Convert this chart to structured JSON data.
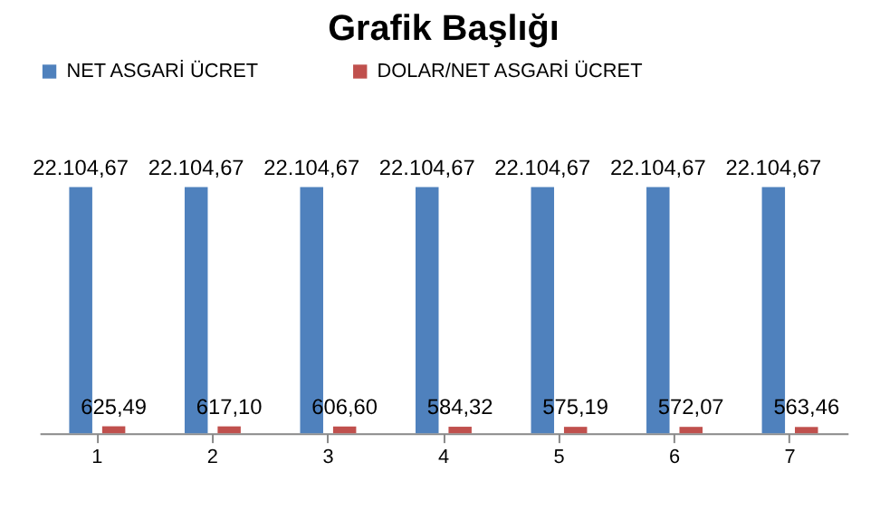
{
  "chart_data": {
    "type": "bar",
    "title": "Grafik Başlığı",
    "categories": [
      "1",
      "2",
      "3",
      "4",
      "5",
      "6",
      "7"
    ],
    "series": [
      {
        "name": "NET ASGARİ ÜCRET",
        "color": "#4f81bd",
        "values": [
          22104.67,
          22104.67,
          22104.67,
          22104.67,
          22104.67,
          22104.67,
          22104.67
        ],
        "value_labels": [
          "22.104,67",
          "22.104,67",
          "22.104,67",
          "22.104,67",
          "22.104,67",
          "22.104,67",
          "22.104,67"
        ]
      },
      {
        "name": "DOLAR/NET ASGARİ ÜCRET",
        "color": "#c0504d",
        "values": [
          625.49,
          617.1,
          606.6,
          584.32,
          575.19,
          572.07,
          563.46
        ],
        "value_labels": [
          "625,49",
          "617,10",
          "606,60",
          "584,32",
          "575,19",
          "572,07",
          "563,46"
        ]
      }
    ],
    "legend": "top",
    "grid": false
  }
}
